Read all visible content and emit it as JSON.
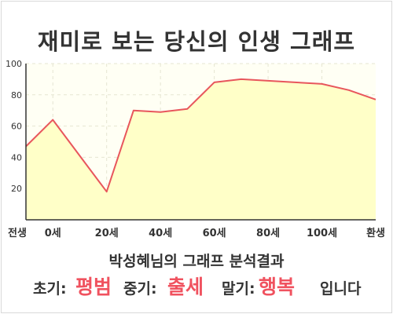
{
  "title": "재미로 보는 당신의 인생 그래프",
  "subtitle": "박성혜님의 그래프 분석결과",
  "summary": {
    "early_label": "초기:",
    "early_value": "평범",
    "middle_label": "중기:",
    "middle_value": "출세",
    "late_label": "말기:",
    "late_value": "행복",
    "ending": "입니다"
  },
  "colors": {
    "line": "#e8565c",
    "fill": "#ffffc8",
    "accent": "#f0525f"
  },
  "chart_data": {
    "type": "area",
    "title": "재미로 보는 당신의 인생 그래프",
    "xlabel": "",
    "ylabel": "",
    "ylim": [
      0,
      100
    ],
    "xlim": [
      -10,
      120
    ],
    "x_ticks": [
      {
        "x": -10,
        "label": "전생"
      },
      {
        "x": 0,
        "label": "0세"
      },
      {
        "x": 20,
        "label": "20세"
      },
      {
        "x": 40,
        "label": "40세"
      },
      {
        "x": 60,
        "label": "60세"
      },
      {
        "x": 80,
        "label": "80세"
      },
      {
        "x": 100,
        "label": "100세"
      },
      {
        "x": 120,
        "label": "환생"
      }
    ],
    "y_ticks": [
      20,
      40,
      60,
      80,
      100
    ],
    "grid": true,
    "series": [
      {
        "x": [
          -10,
          0,
          20,
          30,
          40,
          50,
          60,
          70,
          80,
          90,
          100,
          110,
          120
        ],
        "values": [
          47,
          64,
          18,
          70,
          69,
          71,
          88,
          90,
          89,
          88,
          87,
          83,
          77
        ]
      }
    ]
  }
}
